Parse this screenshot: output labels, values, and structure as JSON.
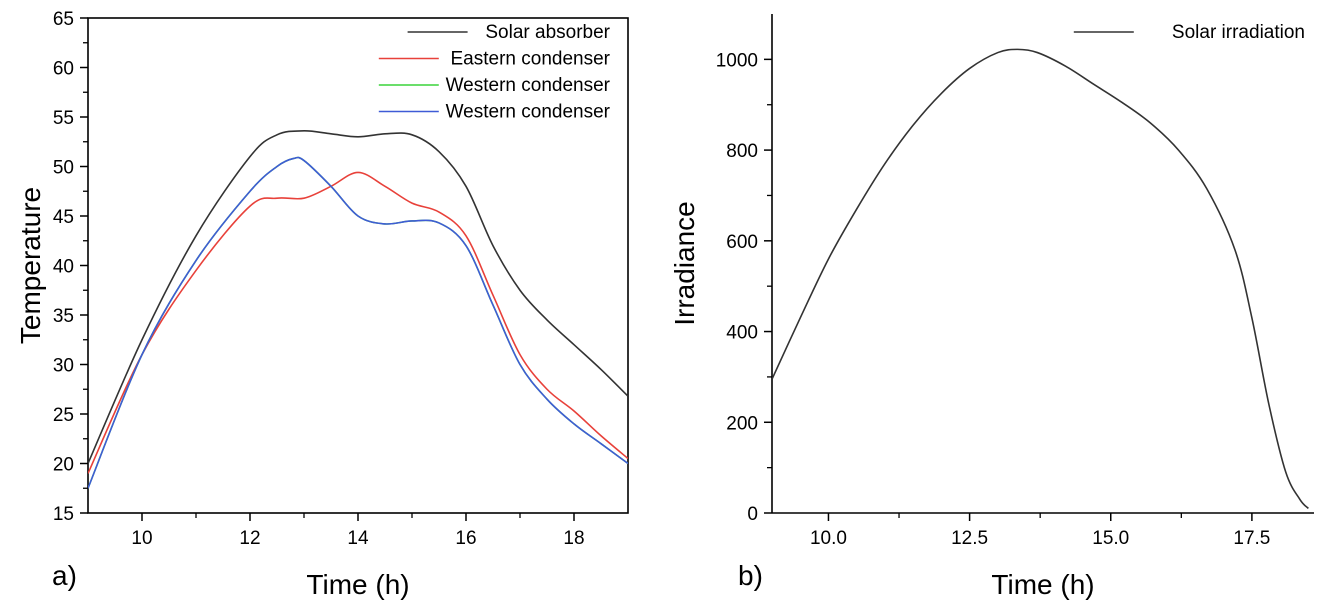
{
  "chart_data": [
    {
      "type": "line",
      "panel_label": "a)",
      "title": "",
      "xlabel": "Time (h)",
      "ylabel": "Temperature",
      "xlim": [
        9,
        19
      ],
      "ylim": [
        15,
        65
      ],
      "xticks": [
        10,
        12,
        14,
        16,
        18
      ],
      "yticks": [
        15,
        20,
        25,
        30,
        35,
        40,
        45,
        50,
        55,
        60,
        65
      ],
      "xtick_labels": [
        "10",
        "12",
        "14",
        "16",
        "18"
      ],
      "ytick_labels": [
        "15",
        "20",
        "25",
        "30",
        "35",
        "40",
        "45",
        "50",
        "55",
        "60",
        "65"
      ],
      "grid": false,
      "legend_position": "top-right",
      "series": [
        {
          "name": "Solar absorber",
          "color": "#333333",
          "points": [
            [
              9,
              20
            ],
            [
              10,
              32.5
            ],
            [
              11,
              43
            ],
            [
              12,
              51
            ],
            [
              12.5,
              53.2
            ],
            [
              13,
              53.6
            ],
            [
              13.5,
              53.3
            ],
            [
              14,
              53
            ],
            [
              14.5,
              53.3
            ],
            [
              15,
              53.2
            ],
            [
              15.5,
              51.5
            ],
            [
              16,
              48
            ],
            [
              16.5,
              42
            ],
            [
              17,
              37.5
            ],
            [
              17.5,
              34.5
            ],
            [
              18,
              32
            ],
            [
              18.5,
              29.5
            ],
            [
              19,
              26.8
            ]
          ]
        },
        {
          "name": "Eastern condenser",
          "color": "#e8413a",
          "points": [
            [
              9,
              19
            ],
            [
              10,
              31
            ],
            [
              11,
              39.5
            ],
            [
              12,
              46
            ],
            [
              12.5,
              46.8
            ],
            [
              13,
              46.8
            ],
            [
              13.5,
              48
            ],
            [
              14,
              49.4
            ],
            [
              14.5,
              48
            ],
            [
              15,
              46.3
            ],
            [
              15.5,
              45.4
            ],
            [
              16,
              43
            ],
            [
              16.5,
              37
            ],
            [
              17,
              31
            ],
            [
              17.5,
              27.5
            ],
            [
              18,
              25.3
            ],
            [
              18.5,
              22.8
            ],
            [
              19,
              20.5
            ]
          ]
        },
        {
          "name": "Western condenser",
          "color": "#3ad43a",
          "points": [
            [
              9,
              17.5
            ],
            [
              10,
              31
            ],
            [
              11,
              40.5
            ],
            [
              12,
              47.5
            ],
            [
              12.5,
              50
            ],
            [
              12.8,
              50.8
            ],
            [
              13,
              50.6
            ],
            [
              13.5,
              48
            ],
            [
              14,
              45
            ],
            [
              14.5,
              44.2
            ],
            [
              15,
              44.5
            ],
            [
              15.5,
              44.3
            ],
            [
              16,
              42
            ],
            [
              16.5,
              36
            ],
            [
              17,
              30
            ],
            [
              17.5,
              26.5
            ],
            [
              18,
              24
            ],
            [
              18.5,
              22
            ],
            [
              19,
              20
            ]
          ]
        },
        {
          "name": "Western condenser",
          "color": "#3f5bd6",
          "points": [
            [
              9,
              17.5
            ],
            [
              10,
              31
            ],
            [
              11,
              40.5
            ],
            [
              12,
              47.5
            ],
            [
              12.5,
              50
            ],
            [
              12.8,
              50.8
            ],
            [
              13,
              50.6
            ],
            [
              13.5,
              48
            ],
            [
              14,
              45
            ],
            [
              14.5,
              44.2
            ],
            [
              15,
              44.5
            ],
            [
              15.5,
              44.3
            ],
            [
              16,
              42
            ],
            [
              16.5,
              36
            ],
            [
              17,
              30
            ],
            [
              17.5,
              26.5
            ],
            [
              18,
              24
            ],
            [
              18.5,
              22
            ],
            [
              19,
              20
            ]
          ]
        }
      ]
    },
    {
      "type": "line",
      "panel_label": "b)",
      "title": "",
      "xlabel": "Time (h)",
      "ylabel": "Irradiance",
      "xlim": [
        9,
        18.6
      ],
      "ylim": [
        0,
        1100
      ],
      "xticks": [
        10,
        12.5,
        15,
        17.5
      ],
      "yticks": [
        0,
        200,
        400,
        600,
        800,
        1000
      ],
      "xtick_labels": [
        "10.0",
        "12.5",
        "15.0",
        "17.5"
      ],
      "ytick_labels": [
        "0",
        "200",
        "400",
        "600",
        "800",
        "1000"
      ],
      "grid": false,
      "legend_position": "top-right",
      "series": [
        {
          "name": "Solar irradiation",
          "color": "#333333",
          "points": [
            [
              9,
              295
            ],
            [
              9.5,
              430
            ],
            [
              10,
              560
            ],
            [
              10.5,
              670
            ],
            [
              11,
              770
            ],
            [
              11.5,
              855
            ],
            [
              12,
              925
            ],
            [
              12.5,
              980
            ],
            [
              13,
              1015
            ],
            [
              13.35,
              1022
            ],
            [
              13.7,
              1015
            ],
            [
              14.2,
              985
            ],
            [
              14.7,
              945
            ],
            [
              15.2,
              905
            ],
            [
              15.7,
              860
            ],
            [
              16.2,
              800
            ],
            [
              16.7,
              715
            ],
            [
              17.2,
              580
            ],
            [
              17.5,
              430
            ],
            [
              17.8,
              240
            ],
            [
              18.1,
              90
            ],
            [
              18.35,
              30
            ],
            [
              18.5,
              10
            ]
          ]
        }
      ]
    }
  ]
}
